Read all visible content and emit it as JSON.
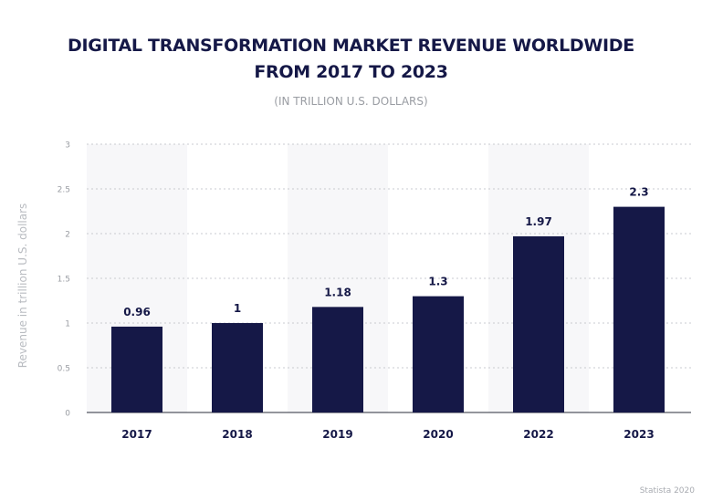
{
  "chart_data": {
    "type": "bar",
    "title_lines": [
      "DIGITAL TRANSFORMATION MARKET REVENUE WORLDWIDE",
      "FROM 2017 TO 2023"
    ],
    "subtitle": "(IN TRILLION U.S. DOLLARS)",
    "ylabel": "Revenue in trillion U.S. dollars",
    "xlabel": "",
    "categories": [
      "2017",
      "2018",
      "2019",
      "2020",
      "2022",
      "2023"
    ],
    "values": [
      0.96,
      1,
      1.18,
      1.3,
      1.97,
      2.3
    ],
    "value_labels": [
      "0.96",
      "1",
      "1.18",
      "1.3",
      "1.97",
      "2.3"
    ],
    "ylim": [
      0,
      3
    ],
    "yticks": [
      "0",
      "0.5",
      "1",
      "1.5",
      "2",
      "2.5",
      "3"
    ],
    "grid": true,
    "legend": "none",
    "colors": {
      "bar": "#151847",
      "band": "#f7f7f9",
      "grid": "#c9cbd0",
      "title": "#151847",
      "muted": "#9a9da3"
    }
  },
  "footer": "Statista 2020"
}
